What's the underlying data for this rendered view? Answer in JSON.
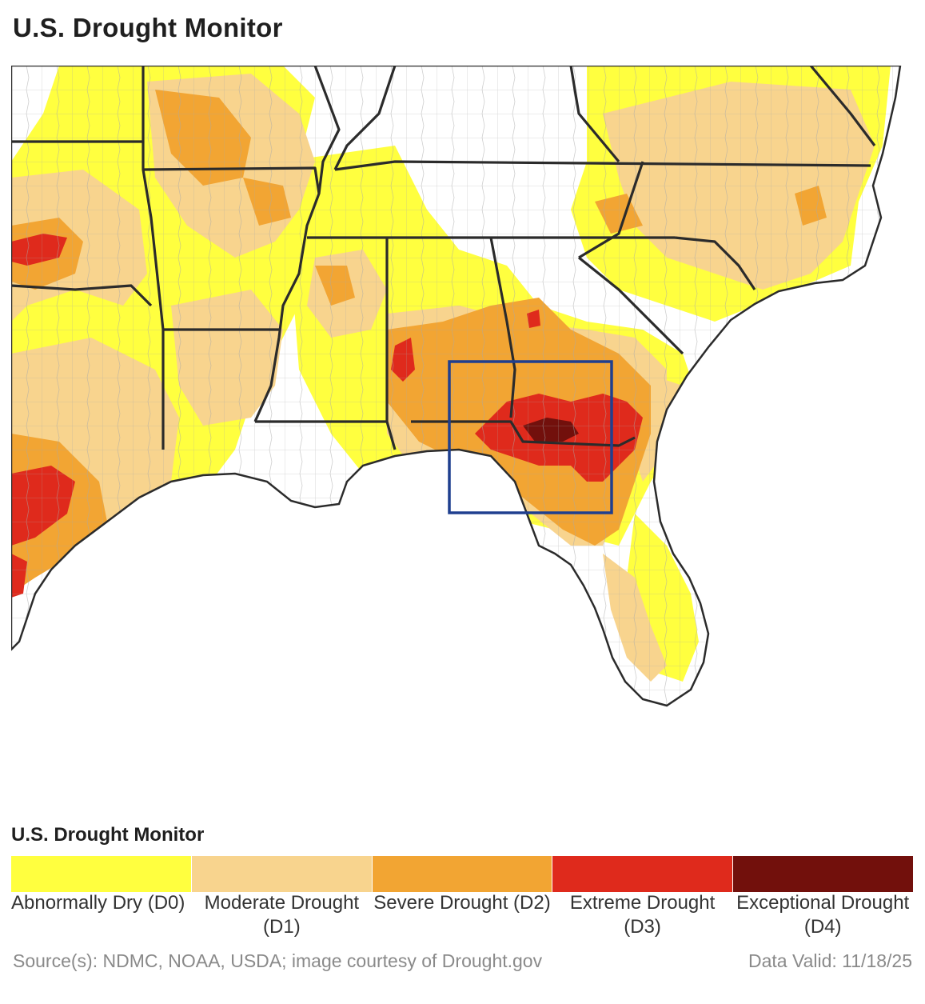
{
  "header": {
    "title": "U.S. Drought Monitor"
  },
  "legend": {
    "title": "U.S. Drought Monitor",
    "items": [
      {
        "label": "Abnormally Dry (D0)",
        "color": "#ffff3f"
      },
      {
        "label": "Moderate Drought (D1)",
        "color": "#f8d48e"
      },
      {
        "label": "Severe Drought (D2)",
        "color": "#f2a533"
      },
      {
        "label": "Extreme Drought (D3)",
        "color": "#df2a1c"
      },
      {
        "label": "Exceptional Drought (D4)",
        "color": "#72100c"
      }
    ]
  },
  "colors": {
    "land": "#ffffff",
    "water": "#ffffff",
    "county_lines": "#9a9a9a",
    "state_lines": "#2b2b2b",
    "highlight_box": "#1f3f8f"
  },
  "footer": {
    "source": "Source(s): NDMC, NOAA, USDA; image courtesy of Drought.gov",
    "date": "Data Valid: 11/18/25"
  }
}
